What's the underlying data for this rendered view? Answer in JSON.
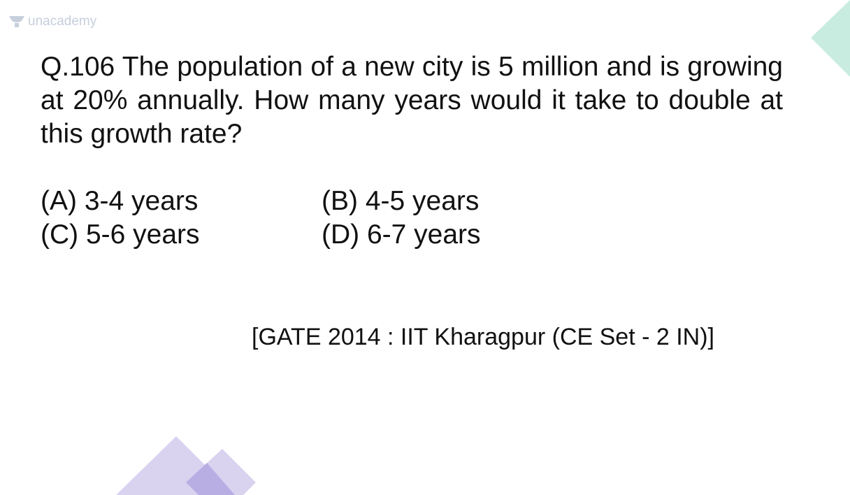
{
  "watermark": {
    "brand": "unacademy",
    "icon": "unacademy-logo-icon",
    "color": "#c6cfdc"
  },
  "question": {
    "text": "Q.106 The population of a new city is 5 million and is growing at 20% annually. How many years would it take to double at this growth rate?"
  },
  "options": [
    {
      "label": "(A) 3-4 years"
    },
    {
      "label": "(B) 4-5 years"
    },
    {
      "label": "(C) 5-6 years"
    },
    {
      "label": "(D) 6-7 years"
    }
  ],
  "source": "[GATE 2014 : IIT Kharagpur (CE Set - 2 IN)]",
  "colors": {
    "text": "#111111",
    "accent_teal": "#c9ece0",
    "accent_purple_light": "#d9d3f0",
    "accent_purple": "#b9aee4"
  }
}
